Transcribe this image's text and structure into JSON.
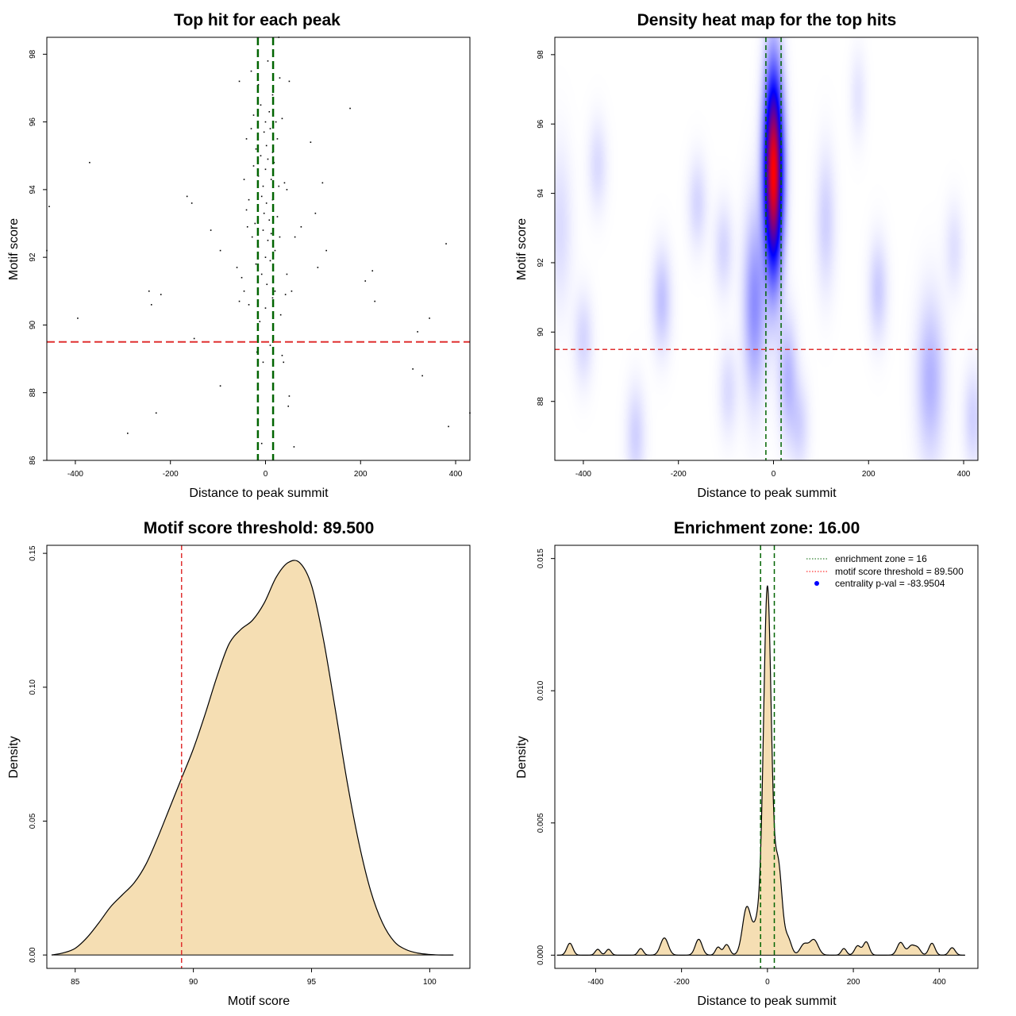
{
  "chart_data": [
    {
      "type": "scatter",
      "title": "Top hit for each peak",
      "xlabel": "Distance to peak summit",
      "ylabel": "Motif score",
      "xlim": [
        -460,
        430
      ],
      "ylim": [
        86,
        98.5
      ],
      "xticks": [
        -400,
        -200,
        0,
        200,
        400
      ],
      "xtick_labels": [
        "-400",
        "-200",
        "0",
        "200",
        "400"
      ],
      "yticks": [
        86,
        88,
        90,
        92,
        94,
        96,
        98
      ],
      "ytick_labels": [
        "86",
        "88",
        "90",
        "92",
        "94",
        "96",
        "98"
      ],
      "enrichment_zone": 16,
      "score_threshold": 89.5,
      "points": [
        [
          -460,
          92.2
        ],
        [
          -455,
          93.5
        ],
        [
          -370,
          94.8
        ],
        [
          -395,
          90.2
        ],
        [
          -290,
          86.8
        ],
        [
          -245,
          91.0
        ],
        [
          -240,
          90.6
        ],
        [
          -230,
          87.4
        ],
        [
          -220,
          90.9
        ],
        [
          -165,
          93.8
        ],
        [
          -155,
          93.6
        ],
        [
          -150,
          89.6
        ],
        [
          -115,
          92.8
        ],
        [
          -95,
          92.2
        ],
        [
          -95,
          88.2
        ],
        [
          -60,
          91.7
        ],
        [
          -55,
          90.7
        ],
        [
          -55,
          97.2
        ],
        [
          -50,
          91.4
        ],
        [
          -45,
          94.3
        ],
        [
          -45,
          91.0
        ],
        [
          -40,
          95.5
        ],
        [
          -40,
          93.4
        ],
        [
          -38,
          92.9
        ],
        [
          -35,
          93.7
        ],
        [
          -35,
          90.6
        ],
        [
          -30,
          97.5
        ],
        [
          -30,
          95.8
        ],
        [
          -28,
          92.6
        ],
        [
          -25,
          96.2
        ],
        [
          -25,
          94.7
        ],
        [
          -22,
          93.0
        ],
        [
          -20,
          95.2
        ],
        [
          -20,
          91.8
        ],
        [
          -18,
          89.2
        ],
        [
          -15,
          97.1
        ],
        [
          -15,
          94.4
        ],
        [
          -15,
          92.3
        ],
        [
          -12,
          90.1
        ],
        [
          -10,
          96.5
        ],
        [
          -10,
          95.0
        ],
        [
          -8,
          93.8
        ],
        [
          -8,
          91.5
        ],
        [
          -5,
          94.1
        ],
        [
          -5,
          92.8
        ],
        [
          -5,
          88.9
        ],
        [
          -3,
          95.7
        ],
        [
          -3,
          93.3
        ],
        [
          0,
          96.0
        ],
        [
          0,
          94.6
        ],
        [
          0,
          92.0
        ],
        [
          0,
          90.5
        ],
        [
          2,
          95.3
        ],
        [
          2,
          93.6
        ],
        [
          3,
          91.2
        ],
        [
          5,
          97.8
        ],
        [
          5,
          94.9
        ],
        [
          5,
          92.5
        ],
        [
          8,
          96.3
        ],
        [
          8,
          93.1
        ],
        [
          10,
          95.8
        ],
        [
          10,
          91.9
        ],
        [
          10,
          89.4
        ],
        [
          12,
          94.3
        ],
        [
          12,
          92.7
        ],
        [
          15,
          96.8
        ],
        [
          15,
          95.1
        ],
        [
          15,
          93.7
        ],
        [
          15,
          90.8
        ],
        [
          18,
          94.8
        ],
        [
          20,
          92.2
        ],
        [
          20,
          91.0
        ],
        [
          22,
          96.0
        ],
        [
          25,
          95.5
        ],
        [
          25,
          93.2
        ],
        [
          28,
          94.1
        ],
        [
          30,
          97.3
        ],
        [
          30,
          92.6
        ],
        [
          32,
          90.3
        ],
        [
          35,
          96.1
        ],
        [
          35,
          89.1
        ],
        [
          38,
          88.9
        ],
        [
          40,
          94.2
        ],
        [
          42,
          90.9
        ],
        [
          45,
          94.0
        ],
        [
          45,
          91.5
        ],
        [
          48,
          87.6
        ],
        [
          50,
          87.9
        ],
        [
          50,
          97.2
        ],
        [
          55,
          91.0
        ],
        [
          60,
          86.4
        ],
        [
          62,
          92.6
        ],
        [
          75,
          92.9
        ],
        [
          95,
          95.4
        ],
        [
          105,
          93.3
        ],
        [
          110,
          91.7
        ],
        [
          120,
          94.2
        ],
        [
          128,
          92.2
        ],
        [
          178,
          96.4
        ],
        [
          210,
          91.3
        ],
        [
          225,
          91.6
        ],
        [
          230,
          90.7
        ],
        [
          310,
          88.7
        ],
        [
          320,
          89.8
        ],
        [
          330,
          88.5
        ],
        [
          345,
          90.2
        ],
        [
          380,
          92.4
        ],
        [
          385,
          87.0
        ],
        [
          430,
          87.4
        ],
        [
          28,
          98.5
        ],
        [
          -8,
          86.5
        ]
      ]
    },
    {
      "type": "heatmap",
      "title": "Density heat map for the top hits",
      "xlabel": "Distance to peak summit",
      "ylabel": "Motif score",
      "xlim": [
        -460,
        430
      ],
      "ylim": [
        86.3,
        98.5
      ],
      "xticks": [
        -400,
        -200,
        0,
        200,
        400
      ],
      "xtick_labels": [
        "-400",
        "-200",
        "0",
        "200",
        "400"
      ],
      "yticks": [
        88,
        90,
        92,
        94,
        96,
        98
      ],
      "ytick_labels": [
        "88",
        "90",
        "92",
        "94",
        "96",
        "98"
      ],
      "enrichment_zone": 16,
      "score_threshold": 89.5,
      "color_scale": [
        "#ffffff",
        "#0000ff",
        "#ff0000"
      ],
      "peak": {
        "x": 0,
        "y": 94.6,
        "sx": 14,
        "sy": 2.0,
        "w": 1.0
      },
      "blobs": [
        {
          "x": -450,
          "y": 93.0,
          "sx": 18,
          "sy": 1.6,
          "w": 0.07
        },
        {
          "x": -400,
          "y": 89.8,
          "sx": 14,
          "sy": 0.9,
          "w": 0.08
        },
        {
          "x": -370,
          "y": 94.8,
          "sx": 14,
          "sy": 0.9,
          "w": 0.07
        },
        {
          "x": -290,
          "y": 87.0,
          "sx": 14,
          "sy": 1.0,
          "w": 0.09
        },
        {
          "x": -235,
          "y": 90.9,
          "sx": 14,
          "sy": 1.0,
          "w": 0.12
        },
        {
          "x": -160,
          "y": 93.7,
          "sx": 14,
          "sy": 0.9,
          "w": 0.08
        },
        {
          "x": -105,
          "y": 92.4,
          "sx": 14,
          "sy": 0.9,
          "w": 0.08
        },
        {
          "x": -95,
          "y": 88.3,
          "sx": 14,
          "sy": 0.9,
          "w": 0.07
        },
        {
          "x": -40,
          "y": 90.8,
          "sx": 16,
          "sy": 1.8,
          "w": 0.22
        },
        {
          "x": 30,
          "y": 88.7,
          "sx": 14,
          "sy": 1.2,
          "w": 0.14
        },
        {
          "x": 55,
          "y": 87.3,
          "sx": 14,
          "sy": 0.9,
          "w": 0.08
        },
        {
          "x": 110,
          "y": 93.2,
          "sx": 14,
          "sy": 1.4,
          "w": 0.09
        },
        {
          "x": 178,
          "y": 96.8,
          "sx": 12,
          "sy": 0.9,
          "w": 0.05
        },
        {
          "x": 220,
          "y": 91.2,
          "sx": 14,
          "sy": 1.0,
          "w": 0.1
        },
        {
          "x": 330,
          "y": 88.6,
          "sx": 20,
          "sy": 1.6,
          "w": 0.15
        },
        {
          "x": 380,
          "y": 92.4,
          "sx": 14,
          "sy": 0.9,
          "w": 0.06
        },
        {
          "x": 420,
          "y": 87.5,
          "sx": 14,
          "sy": 1.0,
          "w": 0.09
        }
      ]
    },
    {
      "type": "area",
      "title": "Motif score threshold: 89.500",
      "xlabel": "Motif score",
      "ylabel": "Density",
      "xlim": [
        83.8,
        101.7
      ],
      "ylim": [
        -0.005,
        0.153
      ],
      "xticks": [
        85,
        90,
        95,
        100
      ],
      "xtick_labels": [
        "85",
        "90",
        "95",
        "100"
      ],
      "yticks": [
        0.0,
        0.05,
        0.1,
        0.15
      ],
      "ytick_labels": [
        "0.00",
        "0.05",
        "0.10",
        "0.15"
      ],
      "threshold": 89.5,
      "fill_color": "#f5deb3",
      "x": [
        84.0,
        84.5,
        85.0,
        85.5,
        86.0,
        86.5,
        87.0,
        87.5,
        88.0,
        88.5,
        89.0,
        89.5,
        90.0,
        90.5,
        91.0,
        91.5,
        92.0,
        92.5,
        93.0,
        93.5,
        94.0,
        94.5,
        95.0,
        95.5,
        96.0,
        96.5,
        97.0,
        97.5,
        98.0,
        98.5,
        99.0,
        99.5,
        100.0,
        100.5,
        101.0
      ],
      "y": [
        0.0,
        0.0008,
        0.0025,
        0.0065,
        0.012,
        0.018,
        0.0225,
        0.027,
        0.034,
        0.044,
        0.055,
        0.066,
        0.077,
        0.09,
        0.104,
        0.116,
        0.1215,
        0.125,
        0.1315,
        0.141,
        0.1465,
        0.1465,
        0.138,
        0.118,
        0.092,
        0.065,
        0.042,
        0.024,
        0.012,
        0.005,
        0.002,
        0.0007,
        0.0002,
        0.0,
        0.0
      ]
    },
    {
      "type": "area",
      "title": "Enrichment zone: 16.00",
      "xlabel": "Distance to peak summit",
      "ylabel": "Density",
      "xlim": [
        -495,
        490
      ],
      "ylim": [
        -0.0005,
        0.0155
      ],
      "xticks": [
        -400,
        -200,
        0,
        200,
        400
      ],
      "xtick_labels": [
        "-400",
        "-200",
        "0",
        "200",
        "400"
      ],
      "yticks": [
        0.0,
        0.005,
        0.01,
        0.015
      ],
      "ytick_labels": [
        "0.000",
        "0.005",
        "0.010",
        "0.015"
      ],
      "enrichment_zone": 16,
      "fill_color": "#f5deb3",
      "peak": {
        "x": 0,
        "sd": 9,
        "h": 0.0138
      },
      "bumps": [
        {
          "x": -460,
          "sd": 7,
          "h": 0.00045
        },
        {
          "x": -395,
          "sd": 6,
          "h": 0.00022
        },
        {
          "x": -370,
          "sd": 6,
          "h": 0.00022
        },
        {
          "x": -295,
          "sd": 6,
          "h": 0.00025
        },
        {
          "x": -240,
          "sd": 9,
          "h": 0.00065
        },
        {
          "x": -160,
          "sd": 8,
          "h": 0.0006
        },
        {
          "x": -115,
          "sd": 6,
          "h": 0.0003
        },
        {
          "x": -95,
          "sd": 7,
          "h": 0.0004
        },
        {
          "x": -48,
          "sd": 10,
          "h": 0.0018
        },
        {
          "x": -22,
          "sd": 10,
          "h": 0.0012
        },
        {
          "x": 25,
          "sd": 9,
          "h": 0.0034
        },
        {
          "x": 48,
          "sd": 8,
          "h": 0.0006
        },
        {
          "x": 85,
          "sd": 9,
          "h": 0.0004
        },
        {
          "x": 108,
          "sd": 10,
          "h": 0.00058
        },
        {
          "x": 178,
          "sd": 6,
          "h": 0.00025
        },
        {
          "x": 210,
          "sd": 7,
          "h": 0.00035
        },
        {
          "x": 230,
          "sd": 7,
          "h": 0.0005
        },
        {
          "x": 310,
          "sd": 8,
          "h": 0.00048
        },
        {
          "x": 335,
          "sd": 8,
          "h": 0.00035
        },
        {
          "x": 350,
          "sd": 7,
          "h": 0.00025
        },
        {
          "x": 383,
          "sd": 7,
          "h": 0.00045
        },
        {
          "x": 430,
          "sd": 7,
          "h": 0.00028
        }
      ],
      "legend": [
        {
          "label": "enrichment zone = 16",
          "color": "#006400",
          "style": "dotted-line"
        },
        {
          "label": "motif score threshold = 89.500",
          "color": "#ff0000",
          "style": "dotted-line"
        },
        {
          "label": "centrality p-val = -83.9504",
          "color": "#0000ff",
          "style": "point"
        }
      ]
    }
  ]
}
